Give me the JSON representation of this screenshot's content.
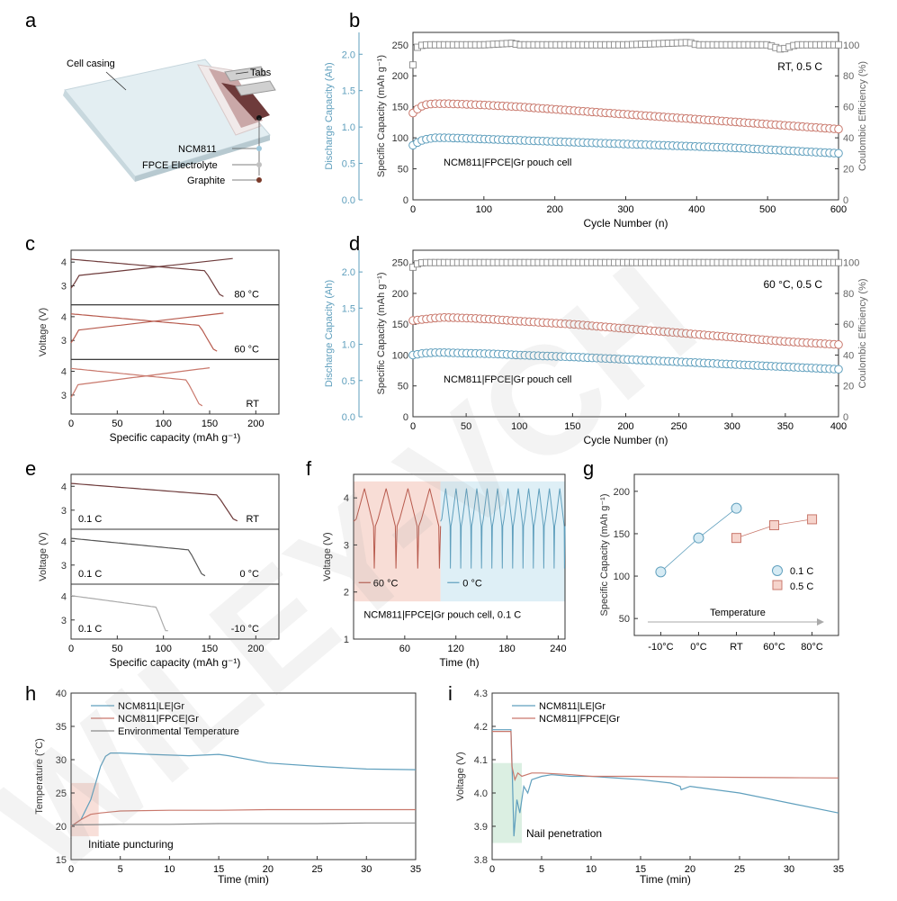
{
  "panel_letters": {
    "a": "a",
    "b": "b",
    "c": "c",
    "d": "d",
    "e": "e",
    "f": "f",
    "g": "g",
    "h": "h",
    "i": "i"
  },
  "colors": {
    "blue": "#5f9fbd",
    "red": "#c9786c",
    "gray": "#8a8a8a",
    "blue_dark": "#3f7fa0",
    "red_dark": "#b75a4d",
    "axis": "#333333",
    "shade_red": "#f6d4cc",
    "shade_blue": "#d6ebf4",
    "shade_green": "#cfe9d8",
    "dark_brown": "#6e3b3b",
    "watermark": "#9a9a9a"
  },
  "watermark": "WILEY-VCH",
  "panel_a": {
    "labels": {
      "casing": "Cell casing",
      "tabs": "Tabs",
      "ncm": "NCM811",
      "fpce": "FPCE Electrolyte",
      "graphite": "Graphite"
    },
    "icon": "pouch-cell-illustration"
  },
  "chart_data": [
    {
      "id": "b",
      "type": "scatter",
      "xlabel": "Cycle Number (n)",
      "ylabel": "Specific Capacity (mAh g⁻¹)",
      "y2label": "Coulombic Efficiency (%)",
      "y3label": "Discharge Capacity (Ah)",
      "xlim": [
        0,
        600
      ],
      "ylim": [
        0,
        270
      ],
      "y2lim": [
        0,
        108
      ],
      "y3lim": [
        0,
        2.3
      ],
      "xticks": [
        "0",
        "100",
        "200",
        "300",
        "400",
        "500",
        "600"
      ],
      "yticks": [
        "0",
        "50",
        "100",
        "150",
        "200",
        "250"
      ],
      "y2ticks": [
        "0",
        "20",
        "40",
        "60",
        "80",
        "100"
      ],
      "y3ticks": [
        "0.0",
        "0.5",
        "1.0",
        "1.5",
        "2.0"
      ],
      "annotation": "RT, 0.5 C",
      "inner_label": "NCM811|FPCE|Gr pouch cell",
      "series": [
        {
          "axis": "left",
          "color": "blue",
          "x": [
            0,
            10,
            20,
            30,
            50,
            75,
            100,
            150,
            200,
            250,
            300,
            350,
            400,
            450,
            500,
            550,
            600
          ],
          "values": [
            88,
            95,
            98,
            100,
            100,
            99,
            98,
            96,
            94,
            92,
            90,
            88,
            86,
            84,
            81,
            78,
            75
          ]
        },
        {
          "axis": "left",
          "color": "red",
          "x": [
            0,
            10,
            20,
            30,
            50,
            75,
            100,
            150,
            200,
            250,
            300,
            350,
            400,
            450,
            500,
            550,
            600
          ],
          "values": [
            140,
            150,
            154,
            155,
            155,
            154,
            153,
            150,
            146,
            142,
            138,
            134,
            130,
            126,
            122,
            118,
            114
          ]
        },
        {
          "axis": "right",
          "color": "gray",
          "x": [
            0,
            5,
            10,
            20,
            50,
            100,
            140,
            150,
            200,
            300,
            390,
            400,
            500,
            520,
            540,
            600
          ],
          "values": [
            87,
            98,
            99.5,
            100,
            100,
            100,
            101,
            100,
            100,
            100,
            101.5,
            100,
            100,
            97,
            100,
            100
          ]
        }
      ]
    },
    {
      "id": "d",
      "type": "scatter",
      "xlabel": "Cycle Number (n)",
      "ylabel": "Specific Capacity (mAh g⁻¹)",
      "y2label": "Coulombic Efficiency (%)",
      "y3label": "Discharge Capacity (Ah)",
      "xlim": [
        0,
        400
      ],
      "ylim": [
        0,
        270
      ],
      "y2lim": [
        0,
        108
      ],
      "y3lim": [
        0,
        2.3
      ],
      "xticks": [
        "0",
        "50",
        "100",
        "150",
        "200",
        "250",
        "300",
        "350",
        "400"
      ],
      "yticks": [
        "0",
        "50",
        "100",
        "150",
        "200",
        "250"
      ],
      "y2ticks": [
        "0",
        "20",
        "40",
        "60",
        "80",
        "100"
      ],
      "y3ticks": [
        "0.0",
        "0.5",
        "1.0",
        "1.5",
        "2.0"
      ],
      "annotation": "60 °C, 0.5 C",
      "inner_label": "NCM811|FPCE|Gr pouch cell",
      "series": [
        {
          "axis": "left",
          "color": "blue",
          "x": [
            0,
            10,
            20,
            30,
            50,
            75,
            100,
            150,
            200,
            250,
            300,
            350,
            400
          ],
          "values": [
            100,
            103,
            104,
            104,
            103,
            102,
            100,
            97,
            93,
            89,
            85,
            81,
            77
          ]
        },
        {
          "axis": "left",
          "color": "red",
          "x": [
            0,
            10,
            20,
            30,
            50,
            75,
            100,
            150,
            200,
            250,
            300,
            350,
            400
          ],
          "values": [
            156,
            158,
            160,
            161,
            160,
            158,
            155,
            150,
            143,
            136,
            129,
            122,
            117
          ]
        },
        {
          "axis": "right",
          "color": "gray",
          "x": [
            0,
            5,
            10,
            20,
            50,
            100,
            200,
            300,
            400
          ],
          "values": [
            97,
            99.5,
            100,
            100,
            100,
            100,
            100,
            100,
            100
          ]
        }
      ]
    },
    {
      "id": "c",
      "type": "line",
      "xlabel": "Specific capacity (mAh g⁻¹)",
      "ylabel": "Voltage (V)",
      "xlim": [
        0,
        225
      ],
      "ylim": [
        2.2,
        4.5
      ],
      "xticks": [
        "0",
        "50",
        "100",
        "150",
        "200"
      ],
      "yticks": [
        "3",
        "4"
      ],
      "subpanels": [
        {
          "label": "80 °C",
          "color": "dark_brown",
          "charge_end": 175,
          "discharge_end": 165
        },
        {
          "label": "60 °C",
          "color": "red_dark",
          "charge_end": 165,
          "discharge_end": 158
        },
        {
          "label": "RT",
          "color": "red",
          "charge_end": 150,
          "discharge_end": 142
        }
      ]
    },
    {
      "id": "e",
      "type": "line",
      "xlabel": "Specific capacity (mAh g⁻¹)",
      "ylabel": "Voltage (V)",
      "xlim": [
        0,
        225
      ],
      "ylim": [
        2.2,
        4.5
      ],
      "xticks": [
        "0",
        "50",
        "100",
        "150",
        "200"
      ],
      "yticks": [
        "3",
        "4"
      ],
      "subpanels": [
        {
          "label": "RT",
          "rate": "0.1 C",
          "color": "dark_brown",
          "discharge_end": 180
        },
        {
          "label": "0 °C",
          "rate": "0.1 C",
          "color": "#555555",
          "discharge_end": 145
        },
        {
          "label": "-10 °C",
          "rate": "0.1 C",
          "color": "#aaaaaa",
          "discharge_end": 105
        }
      ]
    },
    {
      "id": "f",
      "type": "line",
      "xlabel": "Time (h)",
      "ylabel": "Voltage (V)",
      "xlim": [
        0,
        248
      ],
      "ylim": [
        1,
        4.5
      ],
      "xticks": [
        "60",
        "120",
        "180",
        "240"
      ],
      "yticks": [
        "1",
        "2",
        "3",
        "4"
      ],
      "legend": [
        "60 °C",
        "0 °C"
      ],
      "inner_label": "NCM811|FPCE|Gr pouch cell, 0.1 C",
      "series": [
        {
          "name": "60 °C",
          "color": "red_dark",
          "t_start": 0,
          "t_end": 102,
          "cycles": 4
        },
        {
          "name": "0 °C",
          "color": "blue",
          "t_start": 102,
          "t_end": 248,
          "cycles": 12
        }
      ]
    },
    {
      "id": "g",
      "type": "scatter",
      "ylabel": "Specific Capacity (mAh g⁻¹)",
      "categories": [
        "-10°C",
        "0°C",
        "RT",
        "60°C",
        "80°C"
      ],
      "ylim": [
        30,
        220
      ],
      "yticks": [
        "50",
        "100",
        "150",
        "200"
      ],
      "arrow_label": "Temperature",
      "series": [
        {
          "name": "0.1 C",
          "color": "blue",
          "values": [
            105,
            145,
            180,
            null,
            null
          ]
        },
        {
          "name": "0.5 C",
          "color": "red",
          "values": [
            null,
            null,
            145,
            160,
            167
          ]
        }
      ]
    },
    {
      "id": "h",
      "type": "line",
      "xlabel": "Time (min)",
      "ylabel": "Temperature (°C)",
      "xlim": [
        0,
        35
      ],
      "ylim": [
        15,
        40
      ],
      "xticks": [
        "0",
        "5",
        "10",
        "15",
        "20",
        "25",
        "30",
        "35"
      ],
      "yticks": [
        "15",
        "20",
        "25",
        "30",
        "35",
        "40"
      ],
      "annotation": "Initiate puncturing",
      "series": [
        {
          "name": "NCM811|LE|Gr",
          "color": "blue",
          "x": [
            0,
            1,
            2,
            3,
            3.5,
            4,
            5,
            8,
            12,
            15,
            16,
            20,
            25,
            30,
            35
          ],
          "values": [
            20,
            21,
            24,
            29,
            30.5,
            31,
            31,
            30.8,
            30.6,
            30.8,
            30.6,
            29.5,
            29,
            28.6,
            28.5
          ]
        },
        {
          "name": "NCM811|FPCE|Gr",
          "color": "red",
          "x": [
            0,
            1,
            2,
            3,
            5,
            10,
            15,
            20,
            25,
            30,
            35
          ],
          "values": [
            20,
            21,
            21.8,
            22,
            22.3,
            22.4,
            22.4,
            22.5,
            22.5,
            22.5,
            22.5
          ]
        },
        {
          "name": "Environmental Temperature",
          "color": "gray",
          "x": [
            0,
            5,
            10,
            15,
            20,
            25,
            30,
            35
          ],
          "values": [
            20.2,
            20.3,
            20.3,
            20.4,
            20.4,
            20.4,
            20.5,
            20.5
          ]
        }
      ]
    },
    {
      "id": "i",
      "type": "line",
      "xlabel": "Time (min)",
      "ylabel": "Voltage (V)",
      "xlim": [
        0,
        35
      ],
      "ylim": [
        3.8,
        4.3
      ],
      "xticks": [
        "0",
        "5",
        "10",
        "15",
        "20",
        "25",
        "30",
        "35"
      ],
      "yticks": [
        "3.8",
        "3.9",
        "4.0",
        "4.1",
        "4.2",
        "4.3"
      ],
      "annotation": "Nail penetration",
      "series": [
        {
          "name": "NCM811|LE|Gr",
          "color": "blue",
          "x": [
            0,
            1.9,
            2.0,
            2.2,
            2.5,
            2.8,
            3.2,
            3.6,
            4,
            5,
            6,
            8,
            10,
            15,
            18,
            19,
            19.1,
            20,
            25,
            30,
            35
          ],
          "values": [
            4.19,
            4.19,
            4.1,
            3.87,
            3.98,
            3.94,
            4.02,
            4.0,
            4.04,
            4.05,
            4.055,
            4.05,
            4.05,
            4.04,
            4.03,
            4.02,
            4.01,
            4.02,
            4.0,
            3.97,
            3.94
          ]
        },
        {
          "name": "NCM811|FPCE|Gr",
          "color": "red",
          "x": [
            0,
            1.9,
            2.0,
            2.3,
            2.6,
            3.0,
            4,
            5,
            8,
            10,
            15,
            20,
            25,
            30,
            35
          ],
          "values": [
            4.185,
            4.185,
            4.08,
            4.04,
            4.06,
            4.05,
            4.06,
            4.06,
            4.055,
            4.05,
            4.05,
            4.048,
            4.047,
            4.046,
            4.045
          ]
        }
      ]
    }
  ]
}
